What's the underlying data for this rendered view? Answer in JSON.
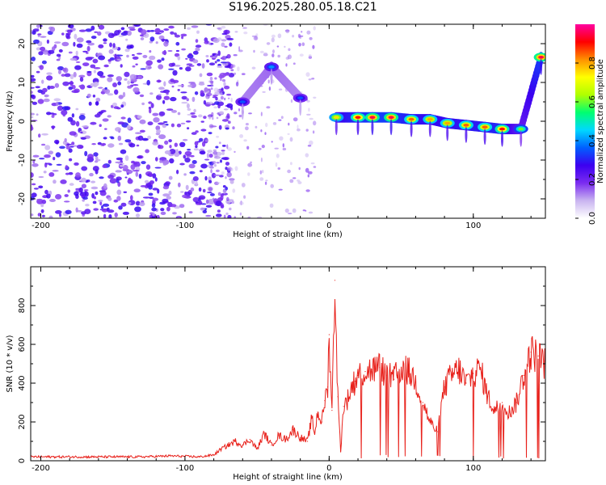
{
  "title": "S196.2025.280.05.18.C21",
  "chart_data": [
    {
      "type": "heatmap",
      "xlabel": "Height of straight line (km)",
      "ylabel": "Frequency (Hz)",
      "xlim": [
        -207,
        150
      ],
      "ylim": [
        -25,
        25
      ],
      "xticks": [
        -200,
        -100,
        0,
        100
      ],
      "yticks": [
        -20,
        -10,
        0,
        10,
        20
      ],
      "colorbar": {
        "label": "Normalized spectral amplitude",
        "ticks": [
          "0.0",
          "0.2",
          "0.4",
          "0.6",
          "0.8"
        ],
        "range": [
          0,
          1
        ],
        "colors": [
          "#ffffff",
          "#c9b4f0",
          "#7b2cf0",
          "#3c00f0",
          "#0060ff",
          "#00d8ff",
          "#00ff70",
          "#b0ff00",
          "#ffff00",
          "#ff9000",
          "#ff0000",
          "#ff00a0"
        ]
      },
      "ridge": [
        {
          "x": -60,
          "freq": 5,
          "amp": 0.35
        },
        {
          "x": -40,
          "freq": 14,
          "amp": 0.4
        },
        {
          "x": -20,
          "freq": 6,
          "amp": 0.35
        },
        {
          "x": 5,
          "freq": 1,
          "amp": 0.75
        },
        {
          "x": 20,
          "freq": 1,
          "amp": 0.9
        },
        {
          "x": 30,
          "freq": 1,
          "amp": 0.95
        },
        {
          "x": 43,
          "freq": 1,
          "amp": 0.95
        },
        {
          "x": 57,
          "freq": 0.5,
          "amp": 0.85
        },
        {
          "x": 70,
          "freq": 0.5,
          "amp": 0.8
        },
        {
          "x": 82,
          "freq": -0.5,
          "amp": 0.8
        },
        {
          "x": 95,
          "freq": -1,
          "amp": 0.85
        },
        {
          "x": 108,
          "freq": -1.5,
          "amp": 0.85
        },
        {
          "x": 120,
          "freq": -2,
          "amp": 0.9
        },
        {
          "x": 133,
          "freq": -2,
          "amp": 0.6
        },
        {
          "x": 147,
          "freq": 16.5,
          "amp": 0.95
        }
      ]
    },
    {
      "type": "line",
      "xlabel": "Height of straight line (km)",
      "ylabel": "SNR (10 * v/v)",
      "xlim": [
        -207,
        150
      ],
      "ylim": [
        0,
        1000
      ],
      "xticks": [
        -200,
        -100,
        0,
        100
      ],
      "yticks": [
        0,
        200,
        400,
        600,
        800
      ],
      "color": "#e8211b",
      "x": [
        -207,
        -190,
        -170,
        -150,
        -130,
        -110,
        -90,
        -80,
        -75,
        -70,
        -65,
        -60,
        -55,
        -50,
        -45,
        -40,
        -35,
        -30,
        -25,
        -20,
        -15,
        -12,
        -10,
        -8,
        -5,
        -3,
        -1,
        0,
        2,
        4,
        6,
        8,
        10,
        13,
        15,
        18,
        20,
        25,
        30,
        35,
        40,
        45,
        50,
        55,
        60,
        65,
        70,
        75,
        80,
        85,
        90,
        95,
        100,
        105,
        110,
        115,
        120,
        125,
        130,
        135,
        140,
        145,
        150
      ],
      "y": [
        20,
        20,
        20,
        20,
        20,
        25,
        20,
        30,
        60,
        80,
        100,
        80,
        110,
        60,
        140,
        80,
        130,
        110,
        160,
        120,
        100,
        220,
        140,
        250,
        200,
        310,
        380,
        650,
        260,
        930,
        330,
        50,
        280,
        320,
        370,
        410,
        440,
        460,
        470,
        480,
        440,
        420,
        480,
        460,
        410,
        300,
        200,
        150,
        380,
        440,
        470,
        400,
        450,
        470,
        330,
        260,
        300,
        250,
        300,
        440,
        560,
        540,
        500
      ]
    }
  ]
}
